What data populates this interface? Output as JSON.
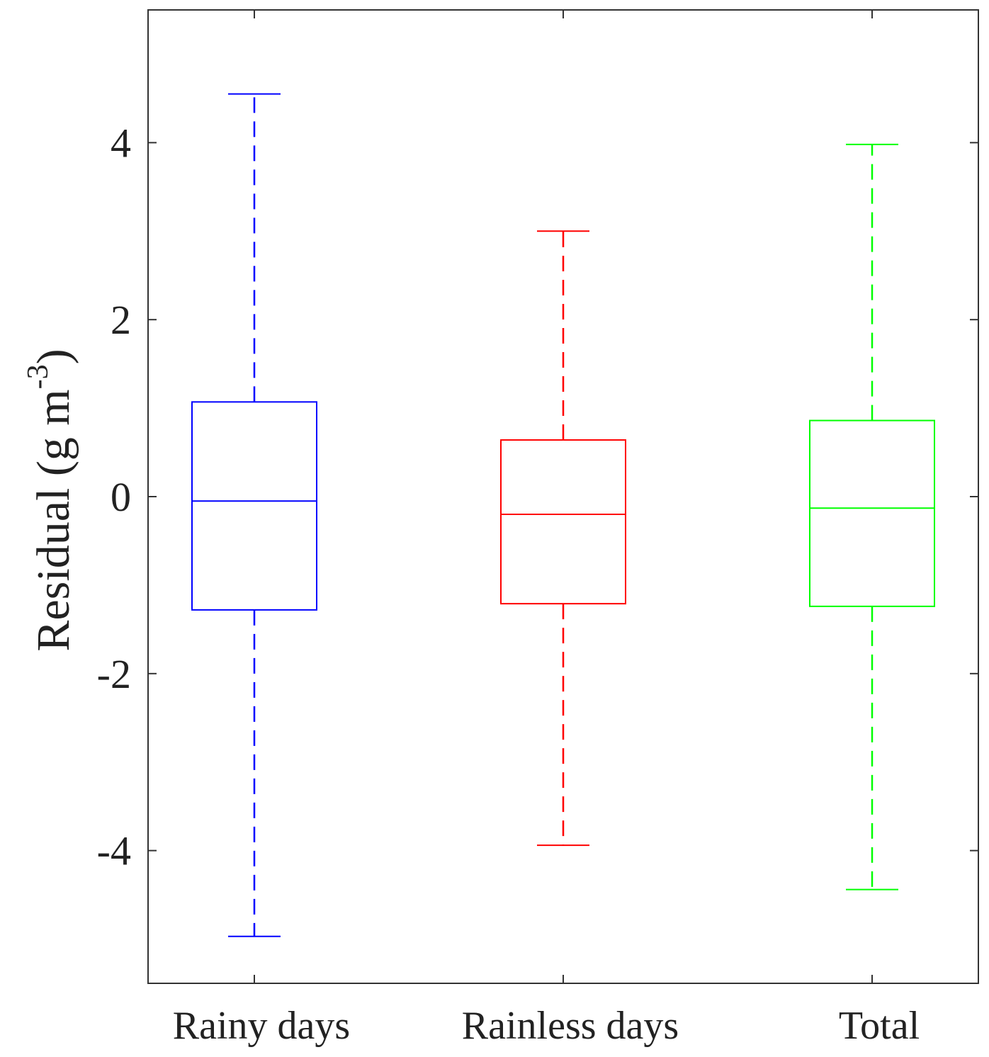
{
  "chart_data": {
    "type": "box",
    "title": "",
    "xlabel": "",
    "ylabel": {
      "text": "Residual (g m",
      "superscript": "-3",
      "suffix": ")"
    },
    "ylim": [
      -5.5,
      5.5
    ],
    "yticks": [
      -4,
      -2,
      0,
      2,
      4
    ],
    "ytick_labels": [
      "-4",
      "-2",
      "0",
      "2",
      "4"
    ],
    "grid": false,
    "legend": "none",
    "categories": [
      "Rainy days",
      "Rainless days",
      "Total"
    ],
    "series": [
      {
        "category": "Rainy days",
        "color": "#0000ff",
        "whisker_low": -4.97,
        "q1": -1.28,
        "median": -0.05,
        "q3": 1.07,
        "whisker_high": 4.55
      },
      {
        "category": "Rainless days",
        "color": "#ff0000",
        "whisker_low": -3.94,
        "q1": -1.21,
        "median": -0.2,
        "q3": 0.64,
        "whisker_high": 3.0
      },
      {
        "category": "Total",
        "color": "#00ff00",
        "whisker_low": -4.44,
        "q1": -1.24,
        "median": -0.13,
        "q3": 0.86,
        "whisker_high": 3.98
      }
    ]
  }
}
